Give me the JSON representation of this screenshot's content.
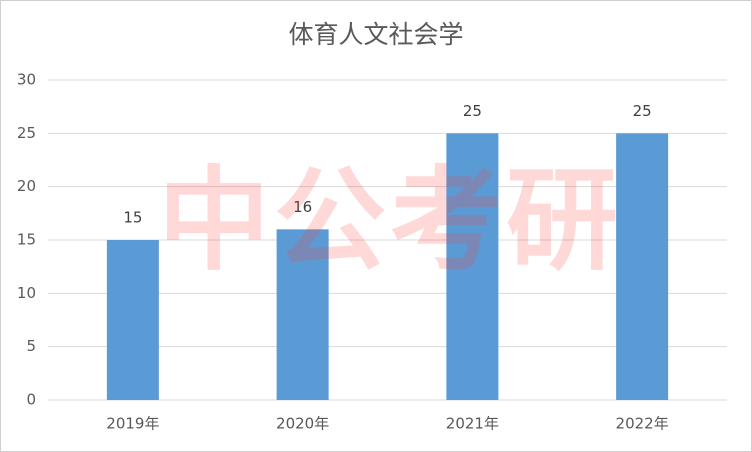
{
  "chart_data": {
    "type": "bar",
    "title": "体育人文社会学",
    "categories": [
      "2019年",
      "2020年",
      "2021年",
      "2022年"
    ],
    "values": [
      15,
      16,
      25,
      25
    ],
    "color": "#5b9bd5",
    "ylim": [
      0,
      30
    ],
    "yticks": [
      0,
      5,
      10,
      15,
      20,
      25,
      30
    ],
    "grid": true,
    "watermark": "中公考研"
  }
}
